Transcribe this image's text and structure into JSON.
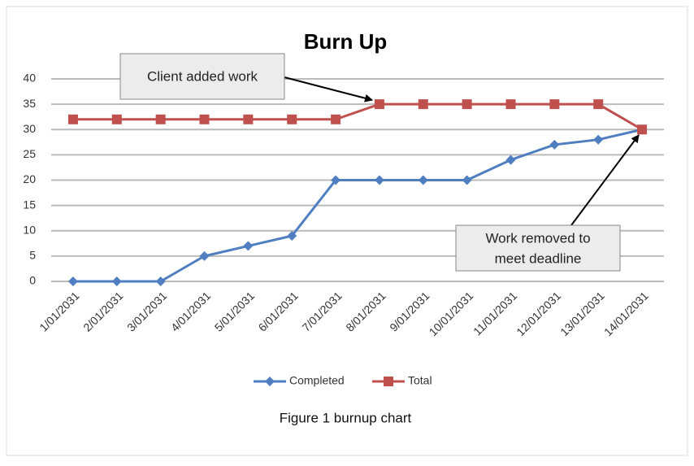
{
  "chart_data": {
    "type": "line",
    "title": "Burn Up",
    "categories": [
      "1/01/2031",
      "2/01/2031",
      "3/01/2031",
      "4/01/2031",
      "5/01/2031",
      "6/01/2031",
      "7/01/2031",
      "8/01/2031",
      "9/01/2031",
      "10/01/2031",
      "11/01/2031",
      "12/01/2031",
      "13/01/2031",
      "14/01/2031"
    ],
    "series": [
      {
        "name": "Completed",
        "color": "#4f7fc0",
        "values": [
          0,
          0,
          0,
          5,
          7,
          9,
          20,
          20,
          20,
          20,
          24,
          27,
          28,
          30
        ]
      },
      {
        "name": "Total",
        "color": "#c0504d",
        "values": [
          32,
          32,
          32,
          32,
          32,
          32,
          32,
          35,
          35,
          35,
          35,
          35,
          35,
          30
        ]
      }
    ],
    "ylim": [
      0,
      40
    ],
    "yticks": [
      0,
      5,
      10,
      15,
      20,
      25,
      30,
      35,
      40
    ],
    "grid": true,
    "legend": "bottom",
    "annotations": [
      {
        "lines": [
          "Client added work"
        ]
      },
      {
        "lines": [
          "Work removed to",
          "meet deadline"
        ]
      }
    ],
    "caption": "Figure 1 burnup chart"
  }
}
